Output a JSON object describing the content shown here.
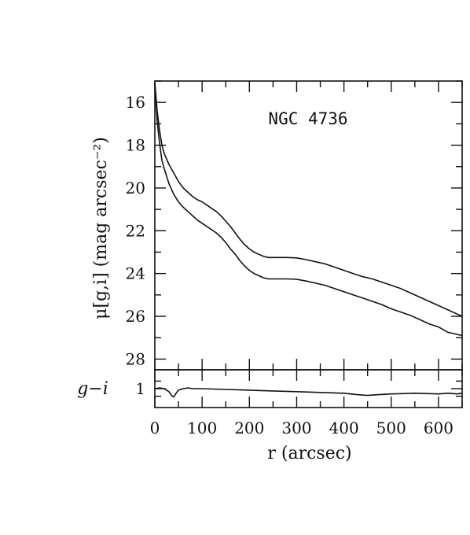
{
  "chart_data": [
    {
      "panel": "top",
      "type": "line",
      "annotation": "NGC 4736",
      "xlabel": "",
      "ylabel": "μ[g,i] (mag arcsec⁻²)",
      "xlim": [
        0,
        650
      ],
      "ylim": [
        28.5,
        15
      ],
      "y_inverted": true,
      "yticks": [
        16,
        18,
        20,
        22,
        24,
        26,
        28
      ],
      "series": [
        {
          "x": [
            0,
            5,
            10,
            15,
            20,
            30,
            40,
            50,
            60,
            70,
            80,
            90,
            100,
            110,
            120,
            130,
            140,
            150,
            160,
            170,
            180,
            190,
            200,
            210,
            220,
            230,
            240,
            250,
            260,
            280,
            300,
            320,
            340,
            360,
            380,
            400,
            420,
            440,
            460,
            480,
            500,
            520,
            540,
            560,
            580,
            600,
            620,
            640,
            650
          ],
          "y": [
            15.1,
            16.4,
            17.3,
            18.0,
            18.4,
            18.9,
            19.3,
            19.7,
            20.0,
            20.2,
            20.4,
            20.55,
            20.65,
            20.8,
            20.95,
            21.1,
            21.3,
            21.55,
            21.8,
            22.1,
            22.4,
            22.65,
            22.85,
            23.0,
            23.1,
            23.2,
            23.25,
            23.25,
            23.25,
            23.25,
            23.27,
            23.35,
            23.45,
            23.55,
            23.7,
            23.85,
            24.0,
            24.15,
            24.25,
            24.4,
            24.55,
            24.7,
            24.9,
            25.1,
            25.3,
            25.5,
            25.7,
            25.9,
            26.0
          ]
        },
        {
          "x": [
            0,
            5,
            10,
            15,
            20,
            30,
            40,
            50,
            60,
            70,
            80,
            90,
            100,
            110,
            120,
            130,
            140,
            150,
            160,
            170,
            180,
            190,
            200,
            210,
            220,
            230,
            240,
            250,
            260,
            280,
            300,
            320,
            340,
            360,
            380,
            400,
            420,
            440,
            460,
            480,
            500,
            520,
            540,
            560,
            580,
            600,
            620,
            640,
            650
          ],
          "y": [
            15.1,
            16.9,
            17.9,
            18.7,
            19.1,
            19.8,
            20.3,
            20.65,
            20.9,
            21.1,
            21.3,
            21.5,
            21.65,
            21.8,
            21.95,
            22.1,
            22.3,
            22.55,
            22.85,
            23.1,
            23.4,
            23.65,
            23.85,
            24.0,
            24.1,
            24.2,
            24.25,
            24.25,
            24.25,
            24.25,
            24.27,
            24.35,
            24.45,
            24.55,
            24.7,
            24.85,
            25.0,
            25.15,
            25.3,
            25.45,
            25.65,
            25.8,
            25.95,
            26.15,
            26.35,
            26.5,
            26.75,
            26.85,
            26.9
          ]
        }
      ]
    },
    {
      "panel": "bottom",
      "type": "line",
      "xlabel": "r (arcsec)",
      "ylabel": "g−i",
      "xlim": [
        0,
        650
      ],
      "ylim": [
        1.25,
        0.75
      ],
      "y_inverted": true,
      "yticks": [
        1
      ],
      "xticks": [
        0,
        100,
        200,
        300,
        400,
        500,
        600
      ],
      "series": [
        {
          "x": [
            0,
            10,
            20,
            30,
            35,
            40,
            45,
            50,
            60,
            70,
            80,
            100,
            150,
            200,
            250,
            300,
            350,
            400,
            430,
            450,
            470,
            500,
            550,
            600,
            620,
            640,
            650
          ],
          "y": [
            1.0,
            0.99,
            1.0,
            1.04,
            1.09,
            1.11,
            1.06,
            1.02,
            1.0,
            0.99,
            1.0,
            1.0,
            1.01,
            1.02,
            1.03,
            1.04,
            1.05,
            1.06,
            1.08,
            1.09,
            1.08,
            1.07,
            1.06,
            1.07,
            1.06,
            1.07,
            1.06
          ]
        }
      ]
    }
  ]
}
